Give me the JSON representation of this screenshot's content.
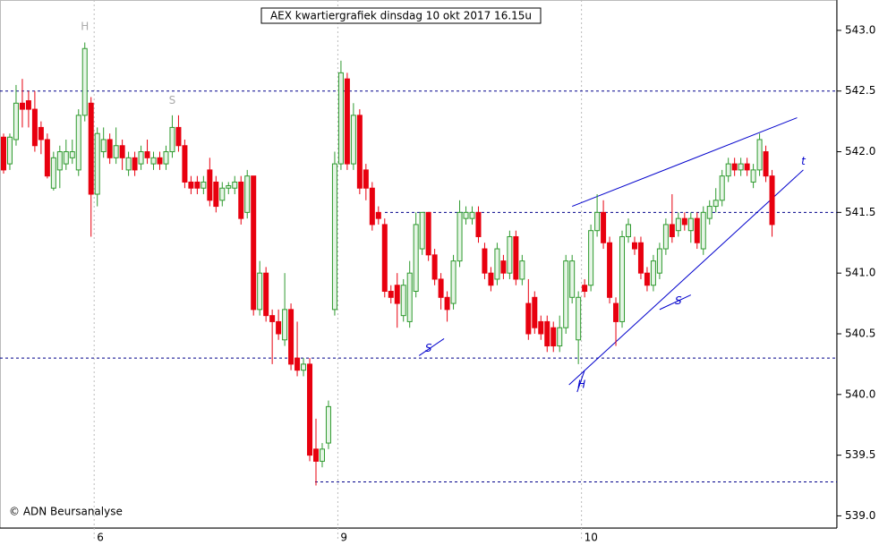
{
  "chart_data": {
    "type": "candlestick",
    "title": "AEX kwartiergrafiek dinsdag 10 okt 2017 16.15u",
    "footer": "© ADN Beursanalyse",
    "categories": [
      null,
      null,
      null,
      null,
      null,
      null,
      null,
      null,
      null,
      null,
      null,
      null,
      null,
      null,
      null,
      "6",
      null,
      null,
      null,
      null,
      null,
      null,
      null,
      null,
      null,
      null,
      null,
      null,
      null,
      null,
      null,
      null,
      null,
      null,
      null,
      null,
      null,
      null,
      null,
      null,
      null,
      null,
      null,
      null,
      null,
      null,
      null,
      null,
      null,
      null,
      null,
      null,
      null,
      null,
      "9",
      null,
      null,
      null,
      null,
      null,
      null,
      null,
      null,
      null,
      null,
      null,
      null,
      null,
      null,
      null,
      null,
      null,
      null,
      null,
      null,
      null,
      null,
      null,
      null,
      null,
      null,
      null,
      null,
      null,
      null,
      null,
      null,
      null,
      null,
      null,
      null,
      null,
      null,
      "10",
      null,
      null,
      null,
      null,
      null,
      null,
      null,
      null,
      null,
      null,
      null,
      null,
      null,
      null,
      null,
      null,
      null,
      null,
      null,
      null,
      null,
      null,
      null,
      null,
      null,
      null,
      null,
      null,
      null,
      null
    ],
    "open": [
      542.12,
      541.9,
      542.1,
      542.4,
      542.42,
      542.35,
      542.2,
      542.1,
      541.7,
      541.85,
      541.9,
      541.95,
      541.85,
      542.3,
      542.4,
      541.65,
      542.0,
      542.1,
      541.95,
      542.05,
      541.85,
      541.95,
      541.9,
      542.0,
      541.9,
      541.95,
      541.9,
      542.0,
      542.2,
      542.05,
      541.75,
      541.75,
      541.7,
      541.85,
      541.75,
      541.6,
      541.7,
      541.7,
      541.75,
      541.5,
      541.8,
      540.7,
      541.0,
      540.65,
      540.6,
      540.45,
      540.7,
      540.3,
      540.2,
      540.25,
      539.55,
      539.45,
      539.6,
      540.7,
      541.9,
      542.6,
      541.9,
      542.3,
      541.85,
      541.7,
      541.5,
      541.4,
      540.85,
      540.9,
      540.65,
      540.6,
      540.85,
      541.2,
      541.5,
      541.15,
      540.95,
      540.8,
      540.75,
      541.1,
      541.45,
      541.45,
      541.5,
      541.2,
      541.0,
      540.95,
      541.1,
      541.0,
      541.3,
      540.95,
      540.75,
      540.8,
      540.6,
      540.6,
      540.55,
      540.4,
      540.55,
      540.8,
      540.45,
      540.9,
      540.9,
      541.35,
      541.5,
      541.25,
      540.75,
      540.6,
      541.3,
      541.25,
      541.25,
      541.0,
      540.9,
      541.0,
      541.2,
      541.4,
      541.35,
      541.45,
      541.35,
      541.45,
      541.2,
      541.45,
      541.55,
      541.6,
      541.8,
      541.9,
      541.85,
      541.9,
      541.75,
      541.85,
      542.0,
      541.8
    ],
    "high": [
      542.15,
      542.15,
      542.55,
      542.6,
      542.5,
      542.5,
      542.25,
      542.15,
      542.0,
      542.05,
      542.1,
      542.1,
      542.35,
      542.9,
      542.45,
      542.2,
      542.2,
      542.15,
      542.2,
      542.1,
      542.0,
      542.0,
      542.05,
      542.1,
      542.0,
      542.0,
      542.05,
      542.3,
      542.3,
      542.1,
      541.8,
      541.8,
      541.8,
      541.95,
      541.8,
      541.75,
      541.75,
      541.8,
      541.8,
      541.85,
      541.8,
      541.1,
      541.05,
      540.7,
      540.7,
      541.0,
      540.75,
      540.6,
      540.3,
      540.3,
      539.8,
      539.6,
      539.95,
      542.0,
      542.75,
      542.65,
      542.4,
      542.35,
      541.9,
      541.75,
      541.55,
      541.45,
      540.9,
      541.0,
      540.95,
      541.1,
      541.5,
      541.5,
      541.5,
      541.2,
      541.0,
      540.85,
      541.15,
      541.6,
      541.55,
      541.55,
      541.55,
      541.25,
      541.05,
      541.25,
      541.15,
      541.35,
      541.35,
      541.15,
      540.95,
      540.85,
      540.65,
      540.65,
      540.6,
      540.65,
      541.15,
      541.15,
      540.85,
      540.95,
      541.4,
      541.65,
      541.6,
      541.3,
      540.8,
      541.35,
      541.45,
      541.3,
      541.3,
      541.05,
      541.15,
      541.25,
      541.45,
      541.65,
      541.5,
      541.5,
      541.5,
      541.5,
      541.55,
      541.6,
      541.7,
      541.85,
      541.95,
      541.95,
      541.95,
      541.95,
      541.9,
      542.15,
      542.05,
      541.85
    ],
    "low": [
      541.82,
      541.85,
      542.05,
      542.2,
      542.2,
      542.0,
      541.98,
      541.78,
      541.68,
      541.7,
      541.85,
      541.9,
      541.8,
      542.25,
      541.3,
      541.55,
      541.95,
      541.9,
      541.9,
      541.85,
      541.8,
      541.8,
      541.85,
      541.9,
      541.85,
      541.85,
      541.85,
      541.95,
      542.0,
      541.7,
      541.65,
      541.65,
      541.65,
      541.55,
      541.5,
      541.55,
      541.65,
      541.65,
      541.4,
      541.45,
      540.65,
      540.65,
      540.6,
      540.25,
      540.45,
      540.4,
      540.2,
      540.15,
      540.15,
      539.45,
      539.25,
      539.4,
      539.55,
      540.65,
      541.85,
      541.85,
      541.85,
      541.65,
      541.6,
      541.35,
      541.4,
      540.8,
      540.75,
      540.55,
      540.6,
      540.55,
      540.8,
      541.15,
      541.1,
      540.9,
      540.7,
      540.6,
      540.7,
      541.05,
      541.4,
      541.4,
      541.25,
      540.95,
      540.85,
      540.9,
      540.95,
      540.95,
      540.9,
      540.9,
      540.45,
      540.5,
      540.45,
      540.35,
      540.35,
      540.35,
      540.5,
      540.75,
      540.25,
      540.8,
      540.85,
      541.3,
      541.2,
      540.75,
      540.4,
      540.55,
      541.25,
      541.15,
      540.95,
      540.85,
      540.85,
      540.95,
      541.15,
      541.25,
      541.3,
      541.35,
      541.25,
      541.2,
      541.15,
      541.4,
      541.5,
      541.55,
      541.75,
      541.8,
      541.8,
      541.8,
      541.7,
      541.8,
      541.75,
      541.3
    ],
    "close": [
      541.85,
      542.12,
      542.4,
      542.35,
      542.35,
      542.05,
      542.1,
      541.8,
      541.95,
      542.0,
      542.0,
      542.0,
      542.3,
      542.85,
      541.65,
      542.15,
      542.1,
      541.95,
      542.05,
      541.95,
      541.95,
      541.85,
      542.0,
      541.95,
      541.95,
      541.9,
      542.0,
      542.2,
      542.05,
      541.75,
      541.7,
      541.7,
      541.75,
      541.6,
      541.55,
      541.7,
      541.72,
      541.75,
      541.45,
      541.8,
      540.7,
      541.0,
      540.65,
      540.6,
      540.5,
      540.7,
      540.25,
      540.2,
      540.25,
      539.5,
      539.45,
      539.55,
      539.9,
      541.9,
      542.65,
      541.9,
      542.3,
      541.7,
      541.7,
      541.4,
      541.45,
      540.85,
      540.8,
      540.75,
      540.9,
      541.0,
      541.4,
      541.5,
      541.15,
      540.95,
      540.8,
      540.7,
      541.1,
      541.5,
      541.5,
      541.5,
      541.3,
      541.0,
      540.9,
      541.2,
      541.0,
      541.3,
      540.95,
      541.1,
      540.5,
      540.55,
      540.5,
      540.4,
      540.4,
      540.55,
      541.1,
      541.1,
      540.8,
      540.85,
      541.35,
      541.5,
      541.25,
      540.8,
      540.6,
      541.3,
      541.4,
      541.2,
      541.0,
      540.9,
      541.1,
      541.2,
      541.4,
      541.3,
      541.45,
      541.4,
      541.45,
      541.25,
      541.5,
      541.55,
      541.6,
      541.8,
      541.9,
      541.85,
      541.9,
      541.85,
      541.85,
      542.1,
      541.8,
      541.4
    ],
    "up_color": "#2e9a2e",
    "down_color": "#e8000f",
    "ylim": [
      538.9,
      543.25
    ],
    "yticks": [
      {
        "value": 539,
        "label": "539.0"
      },
      {
        "value": 539.5,
        "label": "539.5"
      },
      {
        "value": 540,
        "label": "540.0"
      },
      {
        "value": 540.5,
        "label": "540.5"
      },
      {
        "value": 541,
        "label": "541.0"
      },
      {
        "value": 541.5,
        "label": "541.5"
      },
      {
        "value": 542,
        "label": "542.0"
      },
      {
        "value": 542.5,
        "label": "542.5"
      },
      {
        "value": 543,
        "label": "543.0"
      }
    ],
    "hlines": [
      542.5,
      541.5,
      540.3,
      539.28
    ],
    "hline_color": "#00008b",
    "trendlines": [
      [
        [
          91,
          541.55
        ],
        [
          127,
          542.28
        ]
      ],
      [
        [
          90.5,
          540.08
        ],
        [
          128,
          541.85
        ]
      ],
      [
        [
          66.5,
          540.32
        ],
        [
          70.5,
          540.46
        ]
      ],
      [
        [
          105,
          540.7
        ],
        [
          110,
          540.82
        ]
      ],
      [
        [
          91.8,
          540.02
        ],
        [
          93,
          540.2
        ]
      ]
    ],
    "trend_color": "#0000cc",
    "annotations": [
      {
        "text": "H",
        "x": 13,
        "y": 543.03,
        "color": "#aaaaaa"
      },
      {
        "text": "S",
        "x": 27,
        "y": 542.42,
        "color": "#aaaaaa"
      },
      {
        "text": "S",
        "x": 68,
        "y": 540.38,
        "color": "#0000cc"
      },
      {
        "text": "H",
        "x": 92.5,
        "y": 540.08,
        "color": "#0000cc"
      },
      {
        "text": "S",
        "x": 108,
        "y": 540.77,
        "color": "#0000cc"
      },
      {
        "text": "t",
        "x": 128,
        "y": 541.92,
        "color": "#0000cc"
      }
    ]
  }
}
